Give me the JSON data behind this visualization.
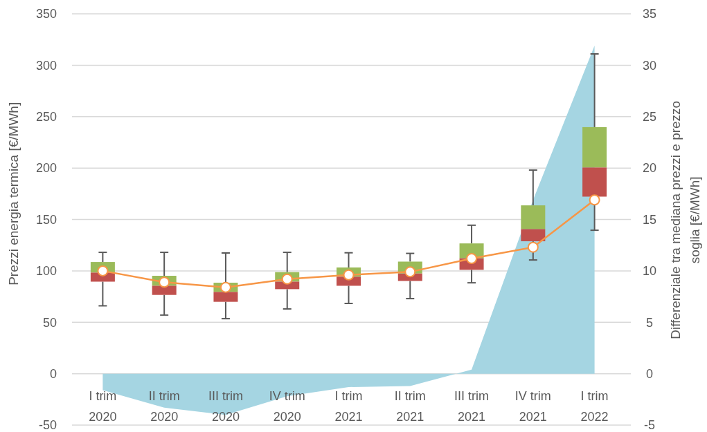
{
  "chart_data": {
    "type": "box",
    "ylabel": "Prezzi energia termica [€/MWh]",
    "y2label": "Differenziale tra mediana prezzi e prezzo soglia [€/MWh]",
    "categories": [
      "I trim 2020",
      "II trim 2020",
      "III trim 2020",
      "IV trim 2020",
      "I trim 2021",
      "II trim 2021",
      "III trim 2021",
      "IV trim 2021",
      "I trim 2022"
    ],
    "ylim": [
      -50,
      350
    ],
    "yticks": [
      -50,
      0,
      50,
      100,
      150,
      200,
      250,
      300,
      350
    ],
    "y2lim": [
      -5,
      35
    ],
    "y2ticks": [
      -5,
      0,
      5,
      10,
      15,
      20,
      25,
      30,
      35
    ],
    "grid": "y",
    "legend": false,
    "series": [
      {
        "type": "area",
        "axis": "y2",
        "color": "#a5d5e2",
        "values": [
          -1.6,
          -3.3,
          -4.0,
          -2.2,
          -1.3,
          -1.2,
          0.4,
          16.9,
          31.9
        ]
      },
      {
        "type": "box",
        "color": "#9bbb59",
        "colors": [
          "#c0504d",
          "#c0504d",
          "#c0504d",
          "#c0504d",
          "#c0504d",
          "#c0504d",
          "#c0504d",
          "#c0504d",
          "#c0504d"
        ],
        "boxes": [
          {
            "low": 66,
            "q1": 89.5,
            "median": 98.3,
            "q3": 108.6,
            "high": 118
          },
          {
            "low": 57,
            "q1": 76.6,
            "median": 85.5,
            "q3": 95.2,
            "high": 118
          },
          {
            "low": 53.5,
            "q1": 69.9,
            "median": 79.5,
            "q3": 88.5,
            "high": 117.4
          },
          {
            "low": 63,
            "q1": 82.2,
            "median": 89.5,
            "q3": 98.8,
            "high": 118
          },
          {
            "low": 68.3,
            "q1": 85.5,
            "median": 94.3,
            "q3": 103.3,
            "high": 117.6
          },
          {
            "low": 73,
            "q1": 90.2,
            "median": 97.4,
            "q3": 109,
            "high": 117
          },
          {
            "low": 88.4,
            "q1": 101,
            "median": 112.2,
            "q3": 126.7,
            "high": 144.4
          },
          {
            "low": 110.6,
            "q1": 128.8,
            "median": 140.6,
            "q3": 163.7,
            "high": 198
          },
          {
            "low": 139.5,
            "q1": 172.2,
            "median": 200.5,
            "q3": 239.8,
            "high": 311
          }
        ]
      },
      {
        "type": "line",
        "color": "#f79646",
        "marker": "circle",
        "values": [
          100,
          89,
          84,
          92,
          96,
          99,
          112,
          123,
          169
        ]
      }
    ]
  }
}
